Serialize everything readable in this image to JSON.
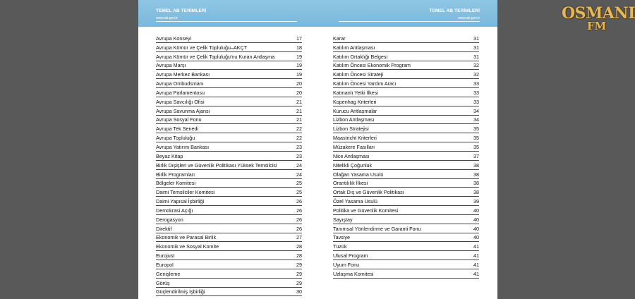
{
  "header": {
    "left_title": "TEMEL AB TERİMLERİ",
    "left_url": "www.ab.gov.tr",
    "right_title": "TEMEL AB TERİMLERİ",
    "right_url": "www.ab.gov.tr"
  },
  "logo": {
    "line1": "OSMANLI",
    "line2": "FM"
  },
  "left_entries": [
    {
      "term": "Avrupa Konseyi",
      "page": "17"
    },
    {
      "term": "Avrupa Kömür ve Çelik Topluluğu–AKÇT",
      "page": "18"
    },
    {
      "term": "Avrupa Kömür ve Çelik Topluluğu'nu Kuran Antlaşma",
      "page": "19"
    },
    {
      "term": "Avrupa Marşı",
      "page": "19"
    },
    {
      "term": "Avrupa Merkez Bankası",
      "page": "19"
    },
    {
      "term": "Avrupa Ombudsmanı",
      "page": "20"
    },
    {
      "term": "Avrupa Parlamentosu",
      "page": "20"
    },
    {
      "term": "Avrupa Savcılığı Ofisi",
      "page": "21"
    },
    {
      "term": "Avrupa Savunma Ajansı",
      "page": "21"
    },
    {
      "term": "Avrupa Sosyal Fonu",
      "page": "21"
    },
    {
      "term": "Avrupa Tek Senedi",
      "page": "22"
    },
    {
      "term": "Avrupa Topluluğu",
      "page": "22"
    },
    {
      "term": "Avrupa Yatırım Bankası",
      "page": "23"
    },
    {
      "term": "Beyaz Kitap",
      "page": "23"
    },
    {
      "term": "Birlik Dışişleri ve Güvenlik Politikası Yüksek Temsilcisi",
      "page": "24"
    },
    {
      "term": "Birlik Programları",
      "page": "24"
    },
    {
      "term": "Bölgeler Komitesi",
      "page": "25"
    },
    {
      "term": "Daimi Temsilciler Komitesi",
      "page": "25"
    },
    {
      "term": "Daimi Yapısal İşbirliği",
      "page": "26"
    },
    {
      "term": "Demokrasi Açığı",
      "page": "26"
    },
    {
      "term": "Derogasyon",
      "page": "26"
    },
    {
      "term": "Direktif",
      "page": "26"
    },
    {
      "term": "Ekonomik ve Parasal Birlik",
      "page": "27"
    },
    {
      "term": "Ekonomik ve Sosyal Komite",
      "page": "28"
    },
    {
      "term": "Eurojust",
      "page": "28"
    },
    {
      "term": "Europol",
      "page": "29"
    },
    {
      "term": "Genişleme",
      "page": "29"
    },
    {
      "term": "Görüş",
      "page": "29"
    },
    {
      "term": "Güçlendirilmiş İşbirliği",
      "page": "30"
    }
  ],
  "right_entries": [
    {
      "term": "Karar",
      "page": "31"
    },
    {
      "term": "Katılım Antlaşması",
      "page": "31"
    },
    {
      "term": "Katılım Ortaklığı Belgesi",
      "page": "31"
    },
    {
      "term": "Katılım Öncesi Ekonomik Program",
      "page": "32"
    },
    {
      "term": "Katılım Öncesi Strateji",
      "page": "32"
    },
    {
      "term": "Katılım Öncesi Yardım Aracı",
      "page": "33"
    },
    {
      "term": "Katmanlı Yetki İlkesi",
      "page": "33"
    },
    {
      "term": "Kopenhag Kriterleri",
      "page": "33"
    },
    {
      "term": "Kurucu Antlaşmalar",
      "page": "34"
    },
    {
      "term": "Lizbon Antlaşması",
      "page": "34"
    },
    {
      "term": "Lizbon Stratejisi",
      "page": "35"
    },
    {
      "term": "Maastricht Kriterleri",
      "page": "35"
    },
    {
      "term": "Müzakere Fasılları",
      "page": "35"
    },
    {
      "term": "Nice Antlaşması",
      "page": "37"
    },
    {
      "term": "Nitelikli Çoğunluk",
      "page": "38"
    },
    {
      "term": "Olağan Yasama Usulü",
      "page": "38"
    },
    {
      "term": "Orantılılık İlkesi",
      "page": "38"
    },
    {
      "term": "Ortak Dış ve Güvenlik Politikası",
      "page": "38"
    },
    {
      "term": "Özel Yasama Usulü",
      "page": "39"
    },
    {
      "term": "Politika ve Güvenlik Komitesi",
      "page": "40"
    },
    {
      "term": "Sayıştay",
      "page": "40"
    },
    {
      "term": "Tanımsal Yönlendirme ve Garanti Fonu",
      "page": "40"
    },
    {
      "term": "Tavsiye",
      "page": "40"
    },
    {
      "term": "Tüzük",
      "page": "41"
    },
    {
      "term": "Ulusal Program",
      "page": "41"
    },
    {
      "term": "Uyum Fonu",
      "page": "41"
    },
    {
      "term": "Uzlaşma Komitesi",
      "page": "41"
    }
  ]
}
